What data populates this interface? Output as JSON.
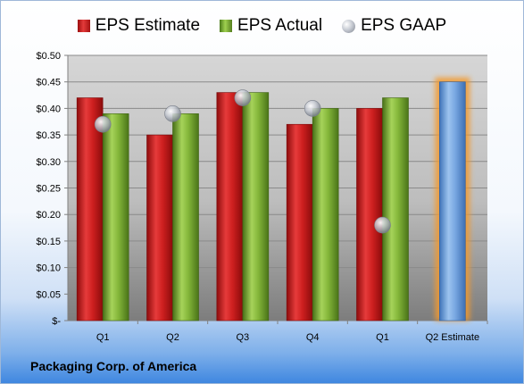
{
  "company": "Packaging Corp. of America",
  "legend": {
    "estimate": "EPS Estimate",
    "actual": "EPS Actual",
    "gaap": "EPS GAAP"
  },
  "colors": {
    "estimate": "#c21d1d",
    "actual": "#7aaa34",
    "gaap": "#b7bcc6",
    "projected": "#6fa3dd",
    "projected_glow": "#f5a43a"
  },
  "chart_data": {
    "type": "bar",
    "categories": [
      "Q1",
      "Q2",
      "Q3",
      "Q4",
      "Q1",
      "Q2 Estimate"
    ],
    "series": [
      {
        "name": "EPS Estimate",
        "values": [
          0.42,
          0.35,
          0.43,
          0.37,
          0.4,
          null
        ]
      },
      {
        "name": "EPS Actual",
        "values": [
          0.39,
          0.39,
          0.43,
          0.4,
          0.42,
          null
        ]
      },
      {
        "name": "EPS GAAP",
        "values": [
          0.37,
          0.39,
          0.42,
          0.4,
          0.18,
          null
        ]
      }
    ],
    "projected": {
      "category": "Q2 Estimate",
      "value": 0.45
    },
    "yticks": [
      "$-",
      "$0.05",
      "$0.10",
      "$0.15",
      "$0.20",
      "$0.25",
      "$0.30",
      "$0.35",
      "$0.40",
      "$0.45",
      "$0.50"
    ],
    "ylim": [
      0,
      0.5
    ],
    "grid": true,
    "legend_position": "top"
  }
}
